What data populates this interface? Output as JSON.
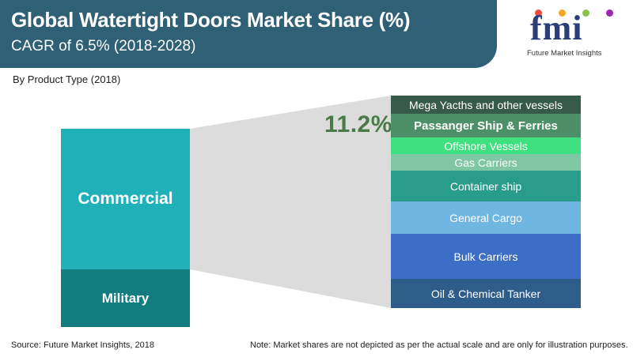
{
  "header": {
    "title": "Global Watertight Doors Market Share (%)",
    "subtitle": "CAGR of 6.5% (2018-2028)"
  },
  "logo": {
    "text": "fmi",
    "tagline": "Future Market Insights",
    "dot_colors": [
      "#e84c3d",
      "#f5a623",
      "#8bc34a",
      "#9c27b0"
    ]
  },
  "segment_label": "By Product Type (2018)",
  "chart_data": {
    "type": "bar",
    "title": "Global Watertight Doors Market Share (%)",
    "subtitle": "CAGR of 6.5% (2018-2028)",
    "categories": [
      "Commercial",
      "Military"
    ],
    "colors": {
      "Commercial": "#1fb0b8",
      "Military": "#137c7f"
    },
    "highlight_value": "11.2%",
    "breakdown": [
      {
        "label": "Mega Yacths and other vessels",
        "color": "#375b4b",
        "weight": 1.0,
        "bold": false
      },
      {
        "label": "Passanger Ship & Ferries",
        "color": "#4d8f69",
        "weight": 1.3,
        "bold": true
      },
      {
        "label": "Offshore Vessels",
        "color": "#3fe07f",
        "weight": 0.9,
        "bold": false
      },
      {
        "label": "Gas Carriers",
        "color": "#7fc6a4",
        "weight": 0.9,
        "bold": false
      },
      {
        "label": "Container ship",
        "color": "#2a9c8c",
        "weight": 1.7,
        "bold": false
      },
      {
        "label": "General Cargo",
        "color": "#6fb6e3",
        "weight": 1.8,
        "bold": false
      },
      {
        "label": "Bulk Carriers",
        "color": "#3d6ec6",
        "weight": 2.5,
        "bold": false
      },
      {
        "label": "Oil & Chemical Tanker",
        "color": "#2e5d8a",
        "weight": 1.6,
        "bold": false
      }
    ]
  },
  "footer": {
    "source": "Source: Future Market Insights, 2018",
    "note": "Note: Market shares are not depicted as per the actual scale and are only for illustration purposes."
  }
}
